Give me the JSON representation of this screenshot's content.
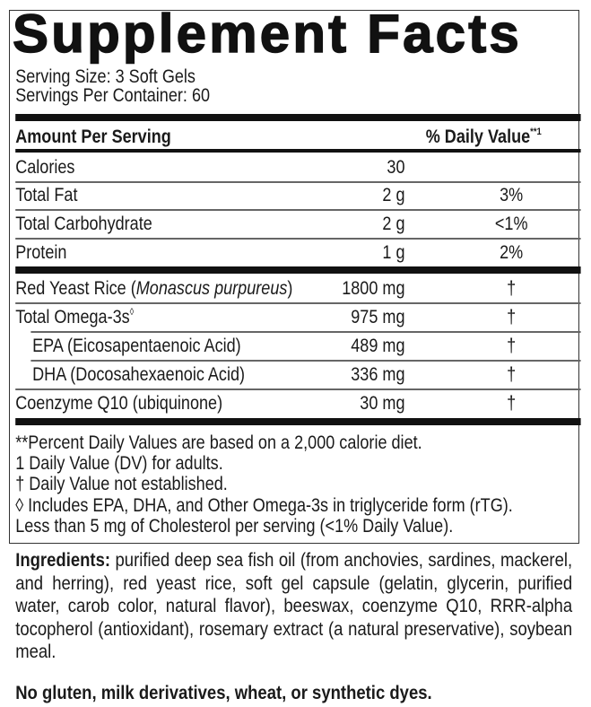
{
  "title": "Supplement Facts",
  "serving_size": "Serving Size: 3 Soft Gels",
  "servings_per_container": "Servings Per Container: 60",
  "header": {
    "amount": "Amount Per Serving",
    "dv": "% Daily Value",
    "dv_mark": "**1"
  },
  "nutrients": [
    {
      "name": "Calories",
      "amount": "30",
      "dv": ""
    },
    {
      "name": "Total Fat",
      "amount": "2 g",
      "dv": "3%"
    },
    {
      "name": "Total Carbohydrate",
      "amount": "2 g",
      "dv": "<1%"
    },
    {
      "name": "Protein",
      "amount": "1 g",
      "dv": "2%"
    }
  ],
  "ingredients_rows": [
    {
      "name": "Red Yeast Rice (",
      "name_italic": "Monascus purpureus",
      "name_end": ")",
      "amount": "1800 mg",
      "dv": "†"
    },
    {
      "name": "Total Omega-3s",
      "mark": "◊",
      "amount": "975 mg",
      "dv": "†"
    },
    {
      "name": "EPA (Eicosapentaenoic Acid)",
      "amount": "489 mg",
      "dv": "†"
    },
    {
      "name": "DHA (Docosahexaenoic Acid)",
      "amount": "336 mg",
      "dv": "†"
    },
    {
      "name": "Coenzyme Q10 (ubiquinone)",
      "amount": "30 mg",
      "dv": "†"
    }
  ],
  "footnotes": [
    "**Percent Daily Values are based on a 2,000 calorie diet.",
    "1 Daily Value (DV) for adults.",
    "† Daily Value not established.",
    "◊ Includes EPA, DHA, and Other Omega-3s in triglyceride form (rTG).",
    "Less than 5 mg of Cholesterol per serving (<1% Daily Value)."
  ],
  "ingredients": {
    "label": "Ingredients:",
    "text": " purified deep sea fish oil (from anchovies, sardines, mackerel, and herring), red yeast rice, soft gel capsule (gelatin, glycerin, purified water, carob color, natural flavor), beeswax, coenzyme Q10, RRR-alpha tocopherol (antioxidant), rosemary extract (a natural preservative), soybean meal."
  },
  "allergen_statement": "No gluten, milk derivatives, wheat, or synthetic dyes."
}
